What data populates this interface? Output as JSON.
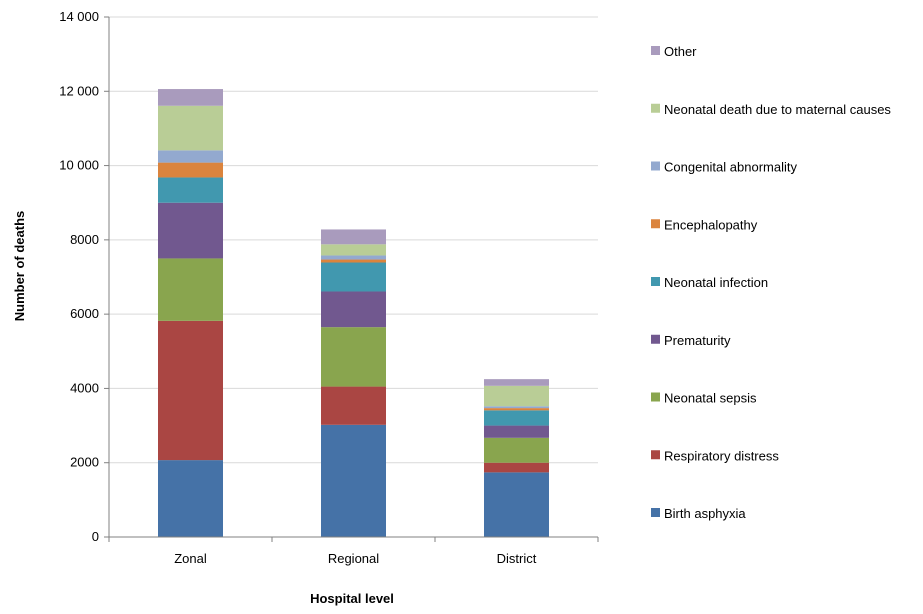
{
  "chart_data": {
    "type": "bar",
    "stacked": true,
    "xlabel": "Hospital level",
    "ylabel": "Number of deaths",
    "ylim": [
      0,
      14000
    ],
    "yticks": [
      0,
      2000,
      4000,
      6000,
      8000,
      10000,
      12000,
      14000
    ],
    "ytick_labels": [
      "0",
      "2000",
      "4000",
      "6000",
      "8000",
      "10 000",
      "12 000",
      "14 000"
    ],
    "grid": true,
    "legend_position": "right",
    "categories": [
      "Zonal",
      "Regional",
      "District"
    ],
    "series": [
      {
        "name": "Birth asphyxia",
        "color": "#4572A7",
        "values": [
          2070,
          3020,
          1740
        ]
      },
      {
        "name": "Respiratory distress",
        "color": "#AA4643",
        "values": [
          3750,
          1030,
          260
        ]
      },
      {
        "name": "Neonatal sepsis",
        "color": "#89A54E",
        "values": [
          1680,
          1600,
          670
        ]
      },
      {
        "name": "Prematurity",
        "color": "#71588F",
        "values": [
          1500,
          960,
          330
        ]
      },
      {
        "name": "Neonatal infection",
        "color": "#4198AF",
        "values": [
          680,
          780,
          410
        ]
      },
      {
        "name": "Encephalopathy",
        "color": "#DB843D",
        "values": [
          400,
          80,
          60
        ]
      },
      {
        "name": "Congenital abnormality",
        "color": "#93A9CF",
        "values": [
          330,
          110,
          50
        ]
      },
      {
        "name": "Neonatal death due to maternal causes",
        "color": "#B9CD96",
        "values": [
          1200,
          300,
          550
        ]
      },
      {
        "name": "Other",
        "color": "#A99BBD",
        "values": [
          450,
          400,
          180
        ]
      }
    ]
  }
}
